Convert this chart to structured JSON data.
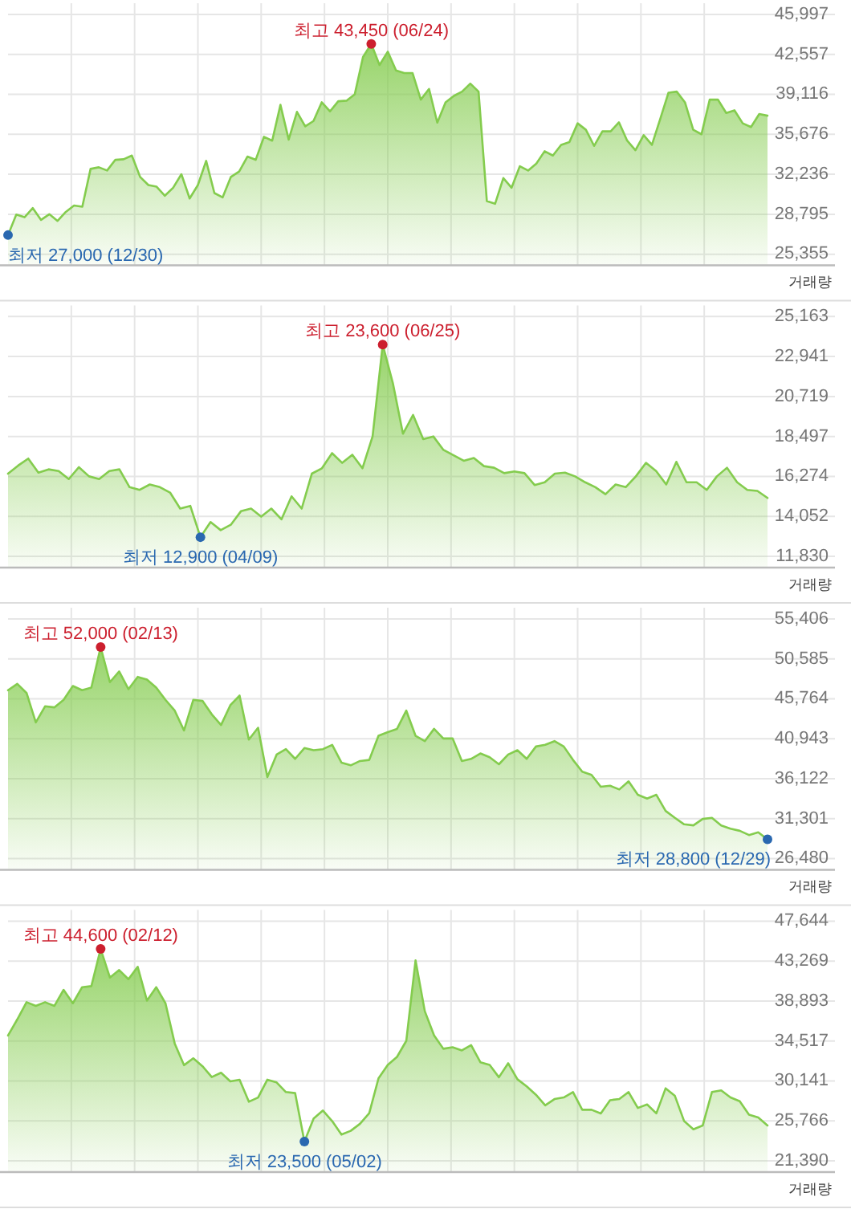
{
  "chart_data": [
    {
      "type": "area",
      "categories": [
        null,
        null,
        null,
        null,
        null,
        null,
        null,
        null,
        null,
        null,
        null,
        null,
        null,
        null,
        null,
        null,
        null,
        null,
        null,
        null,
        null,
        null,
        null,
        null,
        null,
        null,
        null,
        null,
        null,
        null,
        null,
        null,
        null,
        null,
        null,
        null,
        null,
        null,
        null,
        null,
        null,
        null,
        null,
        null,
        null,
        null,
        null,
        null,
        null,
        null,
        null,
        null,
        null,
        null,
        null,
        null,
        null,
        null,
        null,
        null,
        null,
        null,
        null,
        null,
        null,
        null,
        null,
        null,
        null,
        null,
        null,
        null,
        null,
        null,
        null,
        null,
        null,
        null,
        null,
        null,
        null,
        null,
        null,
        null,
        null,
        null,
        null,
        null,
        null,
        null,
        null,
        null,
        null
      ],
      "series": [
        {
          "color": "#84cc4e",
          "values": [
            27000,
            28770,
            28540,
            29330,
            28310,
            28800,
            28220,
            29000,
            29550,
            29450,
            32700,
            32840,
            32560,
            33480,
            33530,
            33850,
            32010,
            31310,
            31170,
            30390,
            31080,
            32240,
            30150,
            31310,
            33390,
            30620,
            30250,
            32010,
            32470,
            33760,
            33480,
            35460,
            35130,
            38210,
            35220,
            37610,
            36360,
            36820,
            38430,
            37650,
            38520,
            38570,
            39120,
            42330,
            43450,
            41640,
            42790,
            41180,
            40950,
            40950,
            38660,
            39580,
            36680,
            38430,
            38980,
            39350,
            40040,
            39350,
            29930,
            29700,
            31910,
            31080,
            32930,
            32560,
            33160,
            34220,
            33850,
            34770,
            35000,
            36620,
            36070,
            34680,
            35930,
            35930,
            36710,
            35130,
            34310,
            35600,
            34770,
            36980,
            39250,
            39350,
            38430,
            36070,
            35680,
            38660,
            38660,
            37510,
            37740,
            36620,
            36300,
            37420,
            37280
          ]
        }
      ],
      "ylim": [
        24400,
        46960
      ],
      "yticks": [
        {
          "value": 25355,
          "label": "25,355"
        },
        {
          "value": 28795,
          "label": "28,795"
        },
        {
          "value": 32236,
          "label": "32,236"
        },
        {
          "value": 35676,
          "label": "35,676"
        },
        {
          "value": 39116,
          "label": "39,116"
        },
        {
          "value": 42557,
          "label": "42,557"
        },
        {
          "value": 45997,
          "label": "45,997"
        }
      ],
      "grid": true,
      "tick_labels": "y",
      "annotations": [
        {
          "text": "최고 43,450 (06/24)",
          "y": 43450
        },
        "최저 27,000 (12/30)",
        "거래량"
      ]
    },
    {
      "type": "area",
      "categories": [
        null,
        null,
        null,
        null,
        null,
        null,
        null,
        null,
        null,
        null,
        null,
        null,
        null,
        null,
        null,
        null,
        null,
        null,
        null,
        null,
        null,
        null,
        null,
        null,
        null,
        null,
        null,
        null,
        null,
        null,
        null,
        null,
        null,
        null,
        null,
        null,
        null,
        null,
        null,
        null,
        null,
        null,
        null,
        null,
        null,
        null,
        null,
        null,
        null,
        null,
        null,
        null,
        null,
        null,
        null,
        null,
        null,
        null,
        null,
        null,
        null,
        null,
        null,
        null,
        null,
        null,
        null,
        null,
        null,
        null,
        null,
        null,
        null,
        null,
        null,
        null
      ],
      "series": [
        {
          "color": "#84cc4e",
          "values": [
            16430,
            16880,
            17270,
            16490,
            16670,
            16580,
            16130,
            16790,
            16280,
            16130,
            16580,
            16670,
            15680,
            15530,
            15830,
            15680,
            15380,
            14490,
            14640,
            12900,
            13740,
            13290,
            13590,
            14340,
            14490,
            14040,
            14490,
            13890,
            15170,
            14490,
            16430,
            16730,
            17570,
            17030,
            17480,
            16730,
            18500,
            23600,
            21470,
            18650,
            19690,
            18350,
            18500,
            17750,
            17450,
            17150,
            17300,
            16850,
            16760,
            16460,
            16550,
            16460,
            15800,
            15950,
            16430,
            16490,
            16280,
            15950,
            15680,
            15290,
            15830,
            15680,
            16280,
            17030,
            16580,
            15830,
            17090,
            15950,
            15950,
            15530,
            16280,
            16760,
            15950,
            15530,
            15470,
            15080
          ]
        }
      ],
      "ylim": [
        11210,
        25780
      ],
      "yticks": [
        {
          "value": 11830,
          "label": "11,830"
        },
        {
          "value": 14052,
          "label": "14,052"
        },
        {
          "value": 16274,
          "label": "16,274"
        },
        {
          "value": 18497,
          "label": "18,497"
        },
        {
          "value": 20719,
          "label": "20,719"
        },
        {
          "value": 22941,
          "label": "22,941"
        },
        {
          "value": 25163,
          "label": "25,163"
        }
      ],
      "grid": true,
      "tick_labels": "y",
      "annotations": [
        {
          "text": "최고 23,600 (06/25)",
          "y": 23600
        },
        {
          "text": "최저 12,900 (04/09)",
          "y": 12900
        },
        "거래량"
      ]
    },
    {
      "type": "area",
      "categories": [
        null,
        null,
        null,
        null,
        null,
        null,
        null,
        null,
        null,
        null,
        null,
        null,
        null,
        null,
        null,
        null,
        null,
        null,
        null,
        null,
        null,
        null,
        null,
        null,
        null,
        null,
        null,
        null,
        null,
        null,
        null,
        null,
        null,
        null,
        null,
        null,
        null,
        null,
        null,
        null,
        null,
        null,
        null,
        null,
        null,
        null,
        null,
        null,
        null,
        null,
        null,
        null,
        null,
        null,
        null,
        null,
        null,
        null,
        null,
        null,
        null,
        null,
        null,
        null,
        null,
        null,
        null,
        null,
        null,
        null,
        null,
        null,
        null,
        null,
        null,
        null,
        null,
        null,
        null,
        null,
        null,
        null,
        null
      ],
      "series": [
        {
          "color": "#84cc4e",
          "values": [
            46800,
            47570,
            46470,
            42920,
            44860,
            44730,
            45640,
            47310,
            46800,
            47120,
            52000,
            47770,
            49060,
            46930,
            48410,
            48090,
            47120,
            45640,
            44340,
            41950,
            45640,
            45510,
            43890,
            42600,
            44990,
            46150,
            40850,
            42270,
            36320,
            39040,
            39690,
            38520,
            39820,
            39560,
            39690,
            40210,
            38070,
            37740,
            38260,
            38390,
            41300,
            41750,
            42140,
            44340,
            41300,
            40660,
            42140,
            40980,
            40980,
            38260,
            38520,
            39170,
            38720,
            37870,
            39040,
            39560,
            38520,
            40010,
            40210,
            40660,
            40010,
            38390,
            36970,
            36580,
            35150,
            35280,
            34830,
            35800,
            34180,
            33730,
            34180,
            32240,
            31400,
            30620,
            30490,
            31270,
            31400,
            30490,
            30100,
            29840,
            29330,
            29650,
            28800
          ]
        }
      ],
      "ylim": [
        25130,
        56756
      ],
      "yticks": [
        {
          "value": 26480,
          "label": "26,480"
        },
        {
          "value": 31301,
          "label": "31,301"
        },
        {
          "value": 36122,
          "label": "36,122"
        },
        {
          "value": 40943,
          "label": "40,943"
        },
        {
          "value": 45764,
          "label": "45,764"
        },
        {
          "value": 50585,
          "label": "50,585"
        },
        {
          "value": 55406,
          "label": "55,406"
        }
      ],
      "grid": true,
      "tick_labels": "y",
      "annotations": [
        {
          "text": "최고 52,000 (02/13)",
          "y": 52000
        },
        "최저 28,800 (12/29)",
        "거래량"
      ]
    },
    {
      "type": "area",
      "categories": [
        null,
        null,
        null,
        null,
        null,
        null,
        null,
        null,
        null,
        null,
        null,
        null,
        null,
        null,
        null,
        null,
        null,
        null,
        null,
        null,
        null,
        null,
        null,
        null,
        null,
        null,
        null,
        null,
        null,
        null,
        null,
        null,
        null,
        null,
        null,
        null,
        null,
        null,
        null,
        null,
        null,
        null,
        null,
        null,
        null,
        null,
        null,
        null,
        null,
        null,
        null,
        null,
        null,
        null,
        null,
        null,
        null,
        null,
        null,
        null,
        null,
        null,
        null,
        null,
        null,
        null,
        null,
        null,
        null,
        null,
        null,
        null,
        null,
        null,
        null,
        null,
        null,
        null,
        null,
        null,
        null,
        null,
        null
      ],
      "series": [
        {
          "color": "#84cc4e",
          "values": [
            35130,
            36890,
            38770,
            38360,
            38770,
            38360,
            40120,
            38650,
            40410,
            40530,
            44600,
            41470,
            42290,
            41290,
            42640,
            38940,
            40410,
            38650,
            34240,
            31870,
            32630,
            31750,
            30570,
            31040,
            30100,
            30280,
            27870,
            28330,
            30280,
            29980,
            28930,
            28810,
            23500,
            26030,
            26910,
            25740,
            24270,
            24680,
            25450,
            26620,
            30430,
            31900,
            32780,
            34540,
            43350,
            37780,
            35130,
            33670,
            33840,
            33490,
            34070,
            32190,
            31900,
            30550,
            32080,
            30330,
            29550,
            28630,
            27480,
            28160,
            28340,
            28930,
            26990,
            26990,
            26590,
            28040,
            28160,
            28930,
            27190,
            27570,
            26590,
            29340,
            28510,
            25740,
            24850,
            25260,
            28930,
            29110,
            28340,
            27920,
            26460,
            26150,
            25270
          ]
        }
      ],
      "ylim": [
        20165,
        48869
      ],
      "yticks": [
        {
          "value": 21390,
          "label": "21,390"
        },
        {
          "value": 25766,
          "label": "25,766"
        },
        {
          "value": 30141,
          "label": "30,141"
        },
        {
          "value": 34517,
          "label": "34,517"
        },
        {
          "value": 38893,
          "label": "38,893"
        },
        {
          "value": 43269,
          "label": "43,269"
        },
        {
          "value": 47644,
          "label": "47,644"
        }
      ],
      "grid": true,
      "tick_labels": "y",
      "annotations": [
        {
          "text": "최고 44,600 (02/12)",
          "y": 44600
        },
        {
          "text": "최저 23,500 (05/02)",
          "y": 23500
        },
        "거래량"
      ]
    }
  ]
}
